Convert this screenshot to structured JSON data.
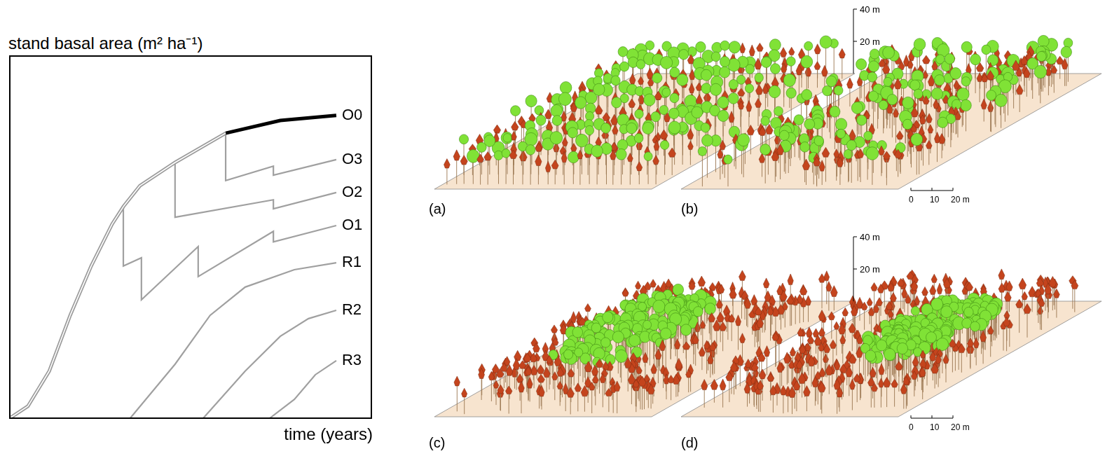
{
  "chart_data": {
    "type": "line",
    "x_label": "time (years)",
    "y_label": "stand basal area (m² ha⁻¹)",
    "xlim": [
      0,
      100
    ],
    "ylim": [
      0,
      100
    ],
    "xticks": [],
    "yticks": [],
    "tick_labels": false,
    "grid": false,
    "series": [
      {
        "name": "O0",
        "color": "#000000",
        "x": [
          0,
          5.0,
          10.9,
          16.7,
          22.5,
          28.3,
          31.4,
          36.0,
          45.7,
          59.7,
          74.8,
          90.3
        ],
        "values": [
          0,
          3.3,
          13.0,
          28.4,
          42.0,
          53.6,
          58.4,
          64.2,
          70.6,
          78.7,
          82.2,
          83.6
        ]
      },
      {
        "name": "O3",
        "color": "#a0a0a0",
        "x": [
          59.7,
          59.7,
          72.9,
          72.9,
          90.3
        ],
        "values": [
          78.7,
          65.6,
          69.6,
          67.1,
          71.4
        ]
      },
      {
        "name": "O2",
        "color": "#a0a0a0",
        "x": [
          45.7,
          45.7,
          72.9,
          72.9,
          90.3
        ],
        "values": [
          70.6,
          55.5,
          60.3,
          57.8,
          62.3
        ]
      },
      {
        "name": "O1",
        "color": "#a0a0a0",
        "x": [
          31.4,
          31.4,
          36.4,
          36.4,
          52.1,
          52.1,
          72.9,
          72.9,
          90.3
        ],
        "values": [
          58.4,
          42.0,
          44.3,
          32.7,
          47.4,
          39.1,
          51.6,
          48.7,
          53.2
        ]
      },
      {
        "name": "R1",
        "color": "#a0a0a0",
        "x": [
          33.3,
          45.7,
          55.4,
          65.1,
          78.7,
          90.3
        ],
        "values": [
          0,
          14.9,
          28.4,
          36.2,
          41.0,
          42.9
        ]
      },
      {
        "name": "R2",
        "color": "#a0a0a0",
        "x": [
          53.5,
          65.1,
          74.8,
          82.6,
          90.3
        ],
        "values": [
          0,
          13.0,
          22.6,
          27.5,
          29.8
        ]
      },
      {
        "name": "R3",
        "color": "#a0a0a0",
        "x": [
          71.9,
          78.7,
          84.5,
          90.3
        ],
        "values": [
          0,
          5.2,
          12.0,
          15.9
        ]
      }
    ]
  },
  "panels": [
    {
      "label": "(a)"
    },
    {
      "label": "(b)"
    },
    {
      "label": "(c)"
    },
    {
      "label": "(d)"
    }
  ],
  "height_scale": {
    "ticks": [
      {
        "value": 40,
        "label": "40 m"
      },
      {
        "value": 20,
        "label": "20 m"
      }
    ]
  },
  "distance_scale": {
    "ticks": [
      {
        "value": 0,
        "label": "0"
      },
      {
        "value": 10,
        "label": "10"
      },
      {
        "value": 20,
        "label": "20 m"
      }
    ]
  }
}
